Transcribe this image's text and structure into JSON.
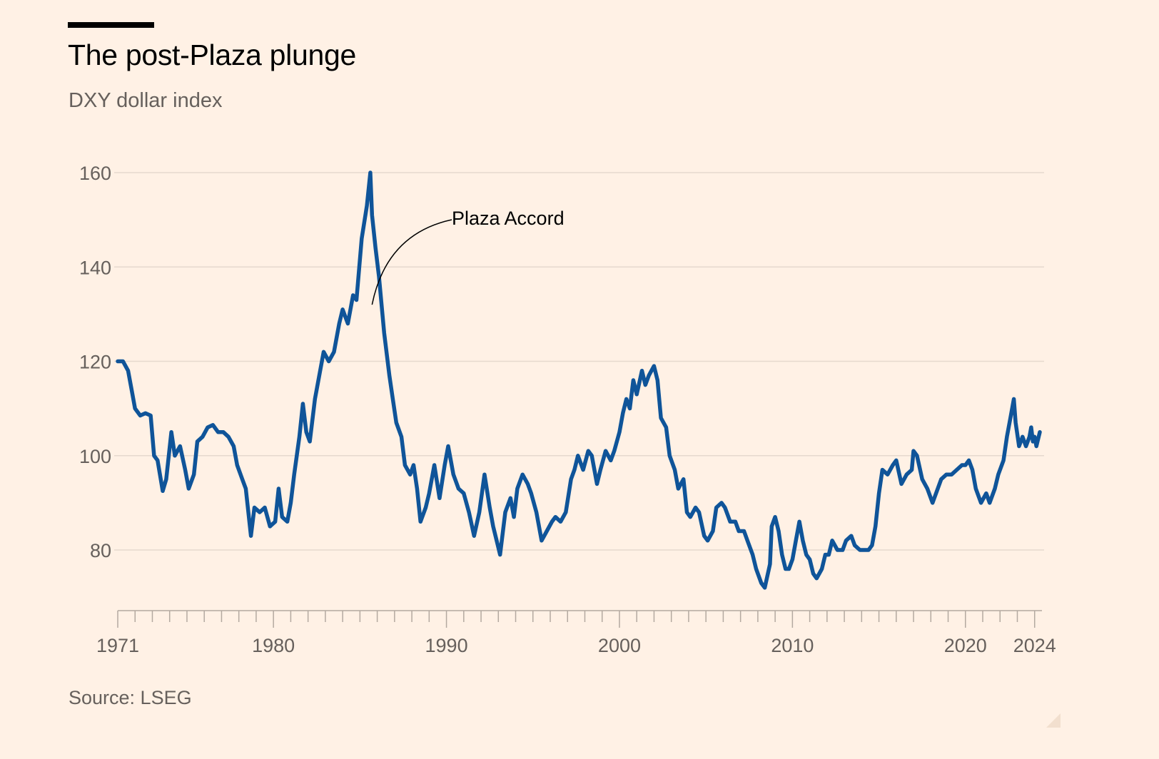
{
  "header": {
    "title": "The post-Plaza plunge",
    "subtitle": "DXY dollar index"
  },
  "footer": {
    "source": "Source: LSEG"
  },
  "colors": {
    "background": "#fff1e5",
    "line": "#0f5499",
    "gridline": "#e6d9ce",
    "axis": "#b3a9a0",
    "text_secondary": "#66605c"
  },
  "chart_data": {
    "type": "line",
    "title": "The post-Plaza plunge",
    "subtitle": "DXY dollar index",
    "xlabel": "",
    "ylabel": "",
    "xlim": [
      1971,
      2024.3
    ],
    "ylim": [
      68,
      162
    ],
    "yticks": [
      80,
      100,
      120,
      140,
      160
    ],
    "xticks": [
      1971,
      1980,
      1990,
      2000,
      2010,
      2020,
      2024
    ],
    "xtick_labels": [
      "1971",
      "1980",
      "1990",
      "2000",
      "2010",
      "2020",
      "2024"
    ],
    "grid": true,
    "legend": "none",
    "annotations": [
      {
        "text": "Plaza Accord",
        "x": 1985.7,
        "y": 132
      }
    ],
    "series": [
      {
        "name": "",
        "points": [
          [
            1971.0,
            120
          ],
          [
            1971.3,
            120
          ],
          [
            1971.6,
            118
          ],
          [
            1971.8,
            114
          ],
          [
            1972.0,
            110
          ],
          [
            1972.3,
            108.5
          ],
          [
            1972.6,
            109
          ],
          [
            1972.9,
            108.5
          ],
          [
            1973.1,
            100
          ],
          [
            1973.3,
            99
          ],
          [
            1973.6,
            92.5
          ],
          [
            1973.8,
            95
          ],
          [
            1974.1,
            105
          ],
          [
            1974.3,
            100
          ],
          [
            1974.6,
            102
          ],
          [
            1974.9,
            97
          ],
          [
            1975.1,
            93
          ],
          [
            1975.4,
            96
          ],
          [
            1975.6,
            103
          ],
          [
            1975.9,
            104
          ],
          [
            1976.2,
            106
          ],
          [
            1976.5,
            106.5
          ],
          [
            1976.8,
            105
          ],
          [
            1977.1,
            105
          ],
          [
            1977.4,
            104
          ],
          [
            1977.7,
            102
          ],
          [
            1977.9,
            98
          ],
          [
            1978.2,
            95
          ],
          [
            1978.4,
            93
          ],
          [
            1978.7,
            83
          ],
          [
            1978.9,
            89
          ],
          [
            1979.2,
            88
          ],
          [
            1979.5,
            89
          ],
          [
            1979.8,
            85
          ],
          [
            1980.1,
            86
          ],
          [
            1980.3,
            93
          ],
          [
            1980.5,
            87
          ],
          [
            1980.8,
            86
          ],
          [
            1981.0,
            90
          ],
          [
            1981.2,
            96
          ],
          [
            1981.5,
            104
          ],
          [
            1981.7,
            111
          ],
          [
            1981.9,
            105
          ],
          [
            1982.1,
            103
          ],
          [
            1982.4,
            112
          ],
          [
            1982.7,
            118
          ],
          [
            1982.9,
            122
          ],
          [
            1983.2,
            120
          ],
          [
            1983.5,
            122
          ],
          [
            1983.8,
            128
          ],
          [
            1984.0,
            131
          ],
          [
            1984.3,
            128
          ],
          [
            1984.6,
            134
          ],
          [
            1984.8,
            133
          ],
          [
            1985.1,
            146
          ],
          [
            1985.4,
            153
          ],
          [
            1985.6,
            160
          ],
          [
            1985.7,
            151
          ],
          [
            1985.9,
            144
          ],
          [
            1986.1,
            138
          ],
          [
            1986.4,
            126
          ],
          [
            1986.7,
            117
          ],
          [
            1986.9,
            112
          ],
          [
            1987.1,
            107
          ],
          [
            1987.4,
            104
          ],
          [
            1987.6,
            98
          ],
          [
            1987.9,
            96
          ],
          [
            1988.1,
            98
          ],
          [
            1988.3,
            93
          ],
          [
            1988.5,
            86
          ],
          [
            1988.8,
            89
          ],
          [
            1989.0,
            92
          ],
          [
            1989.3,
            98
          ],
          [
            1989.6,
            91
          ],
          [
            1989.9,
            98
          ],
          [
            1990.1,
            102
          ],
          [
            1990.4,
            96
          ],
          [
            1990.7,
            93
          ],
          [
            1991.0,
            92
          ],
          [
            1991.3,
            88
          ],
          [
            1991.6,
            83
          ],
          [
            1991.9,
            88
          ],
          [
            1992.2,
            96
          ],
          [
            1992.5,
            89
          ],
          [
            1992.7,
            85
          ],
          [
            1992.9,
            82
          ],
          [
            1993.1,
            79
          ],
          [
            1993.4,
            88
          ],
          [
            1993.7,
            91
          ],
          [
            1993.9,
            87
          ],
          [
            1994.1,
            93
          ],
          [
            1994.4,
            96
          ],
          [
            1994.7,
            94
          ],
          [
            1994.9,
            92
          ],
          [
            1995.2,
            88
          ],
          [
            1995.5,
            82
          ],
          [
            1995.8,
            84
          ],
          [
            1996.1,
            86
          ],
          [
            1996.3,
            87
          ],
          [
            1996.6,
            86
          ],
          [
            1996.9,
            88
          ],
          [
            1997.2,
            95
          ],
          [
            1997.4,
            97
          ],
          [
            1997.6,
            100
          ],
          [
            1997.9,
            97
          ],
          [
            1998.2,
            101
          ],
          [
            1998.4,
            100
          ],
          [
            1998.7,
            94
          ],
          [
            1998.9,
            97
          ],
          [
            1999.2,
            101
          ],
          [
            1999.5,
            99
          ],
          [
            1999.7,
            101
          ],
          [
            2000.0,
            105
          ],
          [
            2000.2,
            109
          ],
          [
            2000.4,
            112
          ],
          [
            2000.6,
            110
          ],
          [
            2000.8,
            116
          ],
          [
            2001.0,
            113
          ],
          [
            2001.3,
            118
          ],
          [
            2001.5,
            115
          ],
          [
            2001.7,
            117
          ],
          [
            2002.0,
            119
          ],
          [
            2002.2,
            116
          ],
          [
            2002.4,
            108
          ],
          [
            2002.7,
            106
          ],
          [
            2002.9,
            100
          ],
          [
            2003.2,
            97
          ],
          [
            2003.4,
            93
          ],
          [
            2003.7,
            95
          ],
          [
            2003.9,
            88
          ],
          [
            2004.1,
            87
          ],
          [
            2004.4,
            89
          ],
          [
            2004.6,
            88
          ],
          [
            2004.9,
            83
          ],
          [
            2005.1,
            82
          ],
          [
            2005.4,
            84
          ],
          [
            2005.6,
            89
          ],
          [
            2005.9,
            90
          ],
          [
            2006.1,
            89
          ],
          [
            2006.4,
            86
          ],
          [
            2006.7,
            86
          ],
          [
            2006.9,
            84
          ],
          [
            2007.2,
            84
          ],
          [
            2007.4,
            82
          ],
          [
            2007.7,
            79
          ],
          [
            2007.9,
            76
          ],
          [
            2008.2,
            73
          ],
          [
            2008.4,
            72
          ],
          [
            2008.7,
            77
          ],
          [
            2008.8,
            85
          ],
          [
            2009.0,
            87
          ],
          [
            2009.2,
            84
          ],
          [
            2009.4,
            79
          ],
          [
            2009.6,
            76
          ],
          [
            2009.8,
            76
          ],
          [
            2010.0,
            78
          ],
          [
            2010.2,
            82
          ],
          [
            2010.4,
            86
          ],
          [
            2010.6,
            82
          ],
          [
            2010.8,
            79
          ],
          [
            2011.0,
            78
          ],
          [
            2011.2,
            75
          ],
          [
            2011.4,
            74
          ],
          [
            2011.7,
            76
          ],
          [
            2011.9,
            79
          ],
          [
            2012.1,
            79
          ],
          [
            2012.3,
            82
          ],
          [
            2012.6,
            80
          ],
          [
            2012.9,
            80
          ],
          [
            2013.1,
            82
          ],
          [
            2013.4,
            83
          ],
          [
            2013.6,
            81
          ],
          [
            2013.9,
            80
          ],
          [
            2014.1,
            80
          ],
          [
            2014.4,
            80
          ],
          [
            2014.6,
            81
          ],
          [
            2014.8,
            85
          ],
          [
            2015.0,
            92
          ],
          [
            2015.2,
            97
          ],
          [
            2015.5,
            96
          ],
          [
            2015.8,
            98
          ],
          [
            2016.0,
            99
          ],
          [
            2016.3,
            94
          ],
          [
            2016.6,
            96
          ],
          [
            2016.9,
            97
          ],
          [
            2017.0,
            101
          ],
          [
            2017.2,
            100
          ],
          [
            2017.5,
            95
          ],
          [
            2017.8,
            93
          ],
          [
            2018.1,
            90
          ],
          [
            2018.3,
            92
          ],
          [
            2018.6,
            95
          ],
          [
            2018.9,
            96
          ],
          [
            2019.2,
            96
          ],
          [
            2019.5,
            97
          ],
          [
            2019.8,
            98
          ],
          [
            2020.0,
            98
          ],
          [
            2020.2,
            99
          ],
          [
            2020.4,
            97
          ],
          [
            2020.6,
            93
          ],
          [
            2020.9,
            90
          ],
          [
            2021.2,
            92
          ],
          [
            2021.4,
            90
          ],
          [
            2021.7,
            93
          ],
          [
            2021.9,
            96
          ],
          [
            2022.2,
            99
          ],
          [
            2022.4,
            104
          ],
          [
            2022.6,
            108
          ],
          [
            2022.8,
            112
          ],
          [
            2022.9,
            107
          ],
          [
            2023.1,
            102
          ],
          [
            2023.3,
            104
          ],
          [
            2023.5,
            102
          ],
          [
            2023.7,
            104
          ],
          [
            2023.8,
            106
          ],
          [
            2023.9,
            103
          ],
          [
            2024.0,
            104
          ],
          [
            2024.1,
            102
          ],
          [
            2024.3,
            105
          ]
        ]
      }
    ]
  }
}
